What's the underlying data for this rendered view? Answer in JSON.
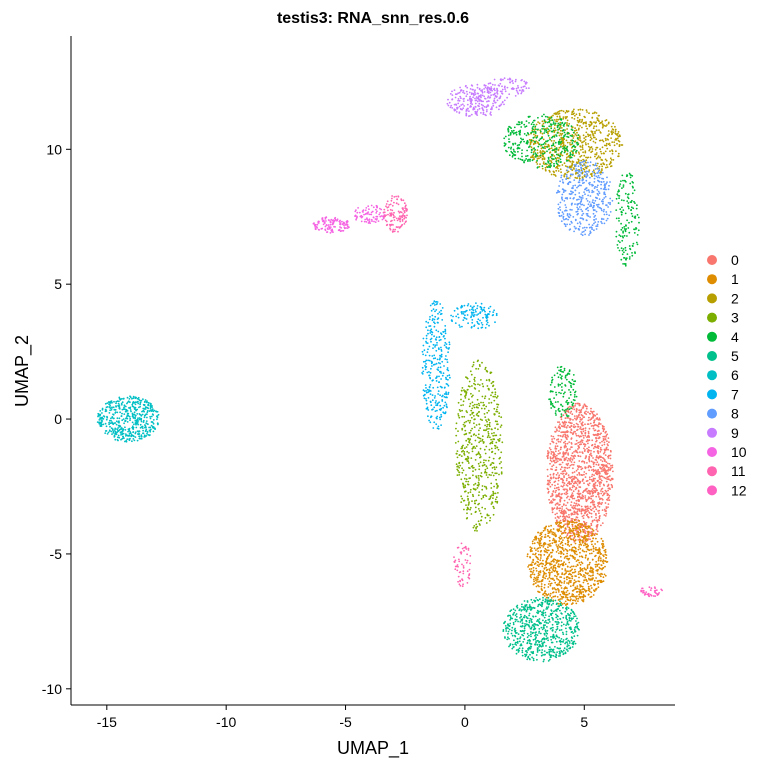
{
  "chart_data": {
    "type": "scatter",
    "title": "testis3: RNA_snn_res.0.6",
    "xlabel": "UMAP_1",
    "ylabel": "UMAP_2",
    "xlim": [
      -16.5,
      8.8
    ],
    "ylim": [
      -10.6,
      14.2
    ],
    "xticks": [
      -15,
      -10,
      -5,
      0,
      5
    ],
    "yticks": [
      -10,
      -5,
      0,
      5,
      10
    ],
    "grid": false,
    "legend_position": "right",
    "series": [
      {
        "name": "0",
        "color": "#F8766D",
        "clusters": [
          [
            4.8,
            -2.0,
            1.4,
            2.6,
            1400
          ]
        ]
      },
      {
        "name": "1",
        "color": "#DE8C00",
        "clusters": [
          [
            4.3,
            -5.3,
            1.7,
            1.6,
            1000
          ]
        ]
      },
      {
        "name": "2",
        "color": "#B79F00",
        "clusters": [
          [
            4.6,
            10.2,
            2.0,
            1.3,
            700
          ]
        ]
      },
      {
        "name": "3",
        "color": "#7CAE00",
        "clusters": [
          [
            0.6,
            -1.0,
            1.0,
            3.2,
            550
          ]
        ]
      },
      {
        "name": "4",
        "color": "#00BA38",
        "clusters": [
          [
            3.2,
            10.3,
            1.6,
            1.0,
            350
          ],
          [
            6.8,
            7.4,
            0.5,
            1.8,
            150
          ],
          [
            4.1,
            1.0,
            0.6,
            1.0,
            120
          ]
        ]
      },
      {
        "name": "5",
        "color": "#00C08B",
        "clusters": [
          [
            3.2,
            -7.8,
            1.6,
            1.2,
            650
          ]
        ]
      },
      {
        "name": "6",
        "color": "#00BFC4",
        "clusters": [
          [
            -14.1,
            0.0,
            1.3,
            0.85,
            500
          ]
        ]
      },
      {
        "name": "7",
        "color": "#00B4F0",
        "clusters": [
          [
            -1.2,
            2.0,
            0.6,
            2.4,
            300
          ],
          [
            0.4,
            3.8,
            1.0,
            0.5,
            120
          ]
        ]
      },
      {
        "name": "8",
        "color": "#619CFF",
        "clusters": [
          [
            5.0,
            8.2,
            1.2,
            1.4,
            400
          ]
        ]
      },
      {
        "name": "9",
        "color": "#C77CFF",
        "clusters": [
          [
            0.5,
            11.8,
            1.3,
            0.6,
            250
          ],
          [
            1.8,
            12.3,
            1.0,
            0.35,
            80
          ]
        ]
      },
      {
        "name": "10",
        "color": "#F564E3",
        "clusters": [
          [
            -5.6,
            7.2,
            0.8,
            0.3,
            120
          ],
          [
            -4.0,
            7.6,
            0.7,
            0.35,
            80
          ]
        ]
      },
      {
        "name": "11",
        "color": "#FF64B0",
        "clusters": [
          [
            -2.9,
            7.6,
            0.5,
            0.7,
            120
          ],
          [
            -0.1,
            -5.4,
            0.4,
            0.8,
            60
          ]
        ]
      },
      {
        "name": "12",
        "color": "#FF61C3",
        "clusters": [
          [
            7.8,
            -6.4,
            0.5,
            0.2,
            40
          ]
        ]
      }
    ]
  }
}
